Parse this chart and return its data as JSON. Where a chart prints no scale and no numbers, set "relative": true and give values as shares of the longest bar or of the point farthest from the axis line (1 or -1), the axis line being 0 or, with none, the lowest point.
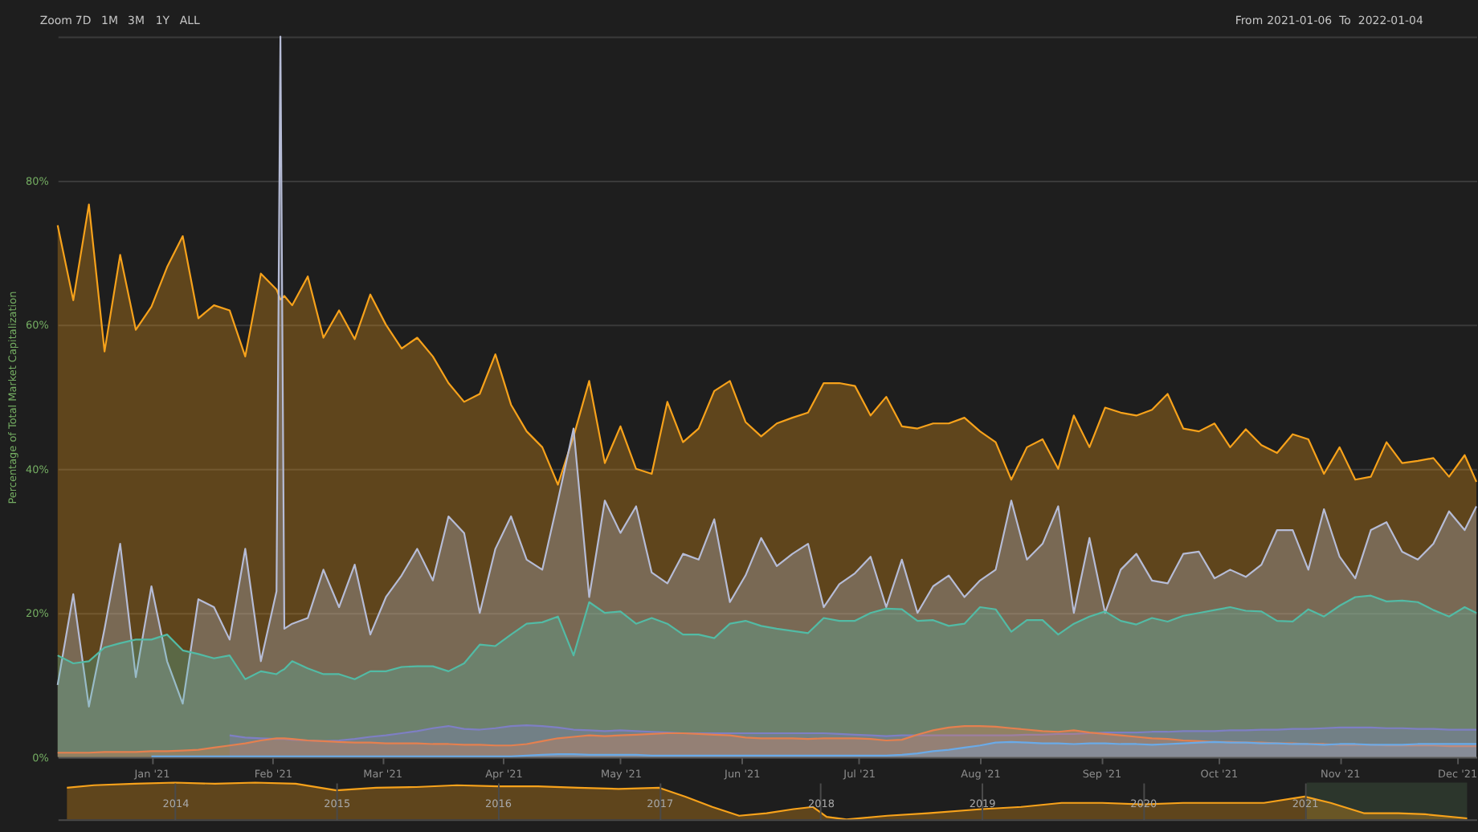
{
  "chart_data": [
    {
      "type": "area",
      "ylabel": "Percentage of Total Market Capitalization",
      "annotations": [
        "Zoom",
        "7D",
        "1M",
        "3M",
        "1Y",
        "ALL",
        "From",
        "2021-01-06",
        "To",
        "2022-01-04"
      ],
      "x": [
        "2020-12-08",
        "2020-12-12",
        "2020-12-16",
        "2020-12-20",
        "2020-12-24",
        "2020-12-28",
        "2021-01-01",
        "2021-01-05",
        "2021-01-09",
        "2021-01-13",
        "2021-01-17",
        "2021-01-21",
        "2021-01-25",
        "2021-01-29",
        "2021-02-02",
        "2021-02-03",
        "2021-02-04",
        "2021-02-06",
        "2021-02-10",
        "2021-02-14",
        "2021-02-18",
        "2021-02-22",
        "2021-02-26",
        "2021-03-02",
        "2021-03-06",
        "2021-03-10",
        "2021-03-14",
        "2021-03-18",
        "2021-03-22",
        "2021-03-26",
        "2021-03-30",
        "2021-04-03",
        "2021-04-07",
        "2021-04-11",
        "2021-04-15",
        "2021-04-19",
        "2021-04-23",
        "2021-04-27",
        "2021-05-01",
        "2021-05-05",
        "2021-05-09",
        "2021-05-13",
        "2021-05-17",
        "2021-05-21",
        "2021-05-25",
        "2021-05-29",
        "2021-06-02",
        "2021-06-06",
        "2021-06-10",
        "2021-06-14",
        "2021-06-18",
        "2021-06-22",
        "2021-06-26",
        "2021-06-30",
        "2021-07-04",
        "2021-07-08",
        "2021-07-12",
        "2021-07-16",
        "2021-07-20",
        "2021-07-24",
        "2021-07-28",
        "2021-08-01",
        "2021-08-05",
        "2021-08-09",
        "2021-08-13",
        "2021-08-17",
        "2021-08-21",
        "2021-08-25",
        "2021-08-29",
        "2021-09-02",
        "2021-09-06",
        "2021-09-10",
        "2021-09-14",
        "2021-09-18",
        "2021-09-22",
        "2021-09-26",
        "2021-09-30",
        "2021-10-04",
        "2021-10-08",
        "2021-10-12",
        "2021-10-16",
        "2021-10-20",
        "2021-10-24",
        "2021-10-28",
        "2021-11-01",
        "2021-11-05",
        "2021-11-09",
        "2021-11-13",
        "2021-11-17",
        "2021-11-21",
        "2021-11-25",
        "2021-11-29",
        "2021-12-03",
        "2021-12-06"
      ],
      "xlim": [
        "2020-12-08",
        "2021-12-06"
      ],
      "xticks": [
        {
          "value": "2021-01-01",
          "label": "Jan '21"
        },
        {
          "value": "2021-02-01",
          "label": "Feb '21"
        },
        {
          "value": "2021-03-01",
          "label": "Mar '21"
        },
        {
          "value": "2021-04-01",
          "label": "Apr '21"
        },
        {
          "value": "2021-05-01",
          "label": "May '21"
        },
        {
          "value": "2021-06-01",
          "label": "Jun '21"
        },
        {
          "value": "2021-07-01",
          "label": "Jul '21"
        },
        {
          "value": "2021-08-01",
          "label": "Aug '21"
        },
        {
          "value": "2021-09-01",
          "label": "Sep '21"
        },
        {
          "value": "2021-10-01",
          "label": "Oct '21"
        },
        {
          "value": "2021-11-01",
          "label": "Nov '21"
        },
        {
          "value": "2021-12-01",
          "label": "Dec '21"
        }
      ],
      "ylim": [
        0,
        100
      ],
      "yticks": [
        {
          "value": 0,
          "label": "0%"
        },
        {
          "value": 20,
          "label": "20%"
        },
        {
          "value": 40,
          "label": "40%"
        },
        {
          "value": 60,
          "label": "60%"
        },
        {
          "value": 80,
          "label": "80%"
        },
        {
          "value": 100,
          "label": null
        }
      ],
      "grid": "y",
      "series": [
        {
          "color": "#f7a21b",
          "values": [
            73.8,
            63.4,
            76.7,
            56.3,
            69.7,
            59.3,
            62.5,
            68.0,
            72.3,
            60.9,
            62.7,
            62.0,
            55.6,
            67.1,
            64.9,
            63.5,
            64.0,
            62.7,
            66.7,
            58.2,
            62.0,
            58.0,
            64.2,
            60.0,
            56.7,
            58.2,
            55.6,
            51.9,
            49.3,
            50.4,
            55.9,
            48.9,
            45.2,
            43.0,
            37.8,
            44.5,
            52.2,
            40.8,
            45.9,
            40.0,
            39.3,
            49.3,
            43.7,
            45.6,
            50.8,
            52.2,
            46.5,
            44.5,
            46.3,
            47.1,
            47.8,
            51.9,
            51.9,
            51.5,
            47.4,
            50.0,
            45.9,
            45.6,
            46.3,
            46.3,
            47.1,
            45.2,
            43.7,
            38.5,
            43.0,
            44.1,
            40.0,
            47.4,
            43.0,
            48.5,
            47.8,
            47.4,
            48.2,
            50.4,
            45.6,
            45.2,
            46.3,
            43.0,
            45.5,
            43.3,
            42.2,
            44.8,
            44.1,
            39.3,
            43.0,
            38.5,
            38.9,
            43.7,
            40.8,
            41.1,
            41.5,
            38.9,
            41.9,
            38.2
          ]
        },
        {
          "color": "#b6bcd6",
          "values": [
            10.0,
            22.6,
            7.0,
            17.8,
            29.6,
            11.1,
            23.7,
            13.3,
            7.4,
            21.9,
            20.8,
            16.3,
            28.9,
            13.3,
            23.0,
            100,
            17.8,
            18.5,
            19.3,
            26.0,
            20.8,
            26.7,
            17.0,
            22.2,
            25.2,
            28.9,
            24.5,
            33.4,
            31.1,
            20.0,
            28.9,
            33.4,
            27.4,
            26.0,
            35.6,
            45.6,
            22.2,
            35.6,
            31.1,
            34.8,
            25.6,
            24.1,
            28.2,
            27.4,
            33.0,
            21.5,
            25.2,
            30.4,
            26.5,
            28.2,
            29.6,
            20.8,
            24.0,
            25.5,
            27.8,
            20.8,
            27.4,
            20.0,
            23.7,
            25.2,
            22.2,
            24.5,
            26.0,
            35.6,
            27.4,
            29.6,
            34.8,
            20.0,
            30.4,
            20.0,
            26.0,
            28.2,
            24.5,
            24.1,
            28.2,
            28.5,
            24.8,
            26.0,
            25.0,
            26.7,
            31.5,
            31.5,
            26.0,
            34.4,
            27.8,
            24.8,
            31.5,
            32.6,
            28.5,
            27.4,
            29.6,
            34.1,
            31.5,
            34.8
          ]
        },
        {
          "color": "#52bba5",
          "values": [
            14.1,
            13.0,
            13.3,
            15.2,
            15.8,
            16.3,
            16.3,
            17.0,
            14.8,
            14.3,
            13.7,
            14.1,
            10.8,
            11.9,
            11.5,
            11.9,
            12.2,
            13.3,
            12.3,
            11.5,
            11.5,
            10.8,
            11.9,
            11.9,
            12.5,
            12.6,
            12.6,
            11.9,
            13.0,
            15.6,
            15.4,
            17.0,
            18.5,
            18.7,
            19.5,
            14.1,
            21.5,
            20.0,
            20.2,
            18.5,
            19.3,
            18.5,
            17.0,
            17.0,
            16.5,
            18.5,
            18.9,
            18.2,
            17.8,
            17.5,
            17.2,
            19.3,
            18.9,
            18.9,
            20.0,
            20.6,
            20.5,
            18.9,
            19.0,
            18.2,
            18.5,
            20.8,
            20.5,
            17.4,
            19.0,
            19.0,
            17.0,
            18.5,
            19.5,
            20.2,
            18.9,
            18.4,
            19.3,
            18.8,
            19.6,
            20.0,
            20.4,
            20.8,
            20.3,
            20.2,
            18.9,
            18.8,
            20.5,
            19.5,
            21.0,
            22.2,
            22.4,
            21.6,
            21.7,
            21.5,
            20.4,
            19.5,
            20.8,
            20.0
          ]
        },
        {
          "color": "#7e7fc4",
          "values": [
            null,
            null,
            null,
            null,
            null,
            null,
            null,
            null,
            null,
            null,
            null,
            3.0,
            2.7,
            2.6,
            2.5,
            2.5,
            2.5,
            2.4,
            2.3,
            2.2,
            2.3,
            2.5,
            2.8,
            3.0,
            3.3,
            3.6,
            4.0,
            4.3,
            3.9,
            3.8,
            4.0,
            4.3,
            4.4,
            4.3,
            4.1,
            3.8,
            3.7,
            3.6,
            3.7,
            3.6,
            3.5,
            3.4,
            3.3,
            3.3,
            3.3,
            3.3,
            3.3,
            3.3,
            3.3,
            3.3,
            3.3,
            3.3,
            3.2,
            3.1,
            3.0,
            2.9,
            3.0,
            3.0,
            3.0,
            3.0,
            3.0,
            3.0,
            3.0,
            3.0,
            3.1,
            3.1,
            3.2,
            3.2,
            3.3,
            3.4,
            3.4,
            3.4,
            3.5,
            3.5,
            3.6,
            3.6,
            3.6,
            3.7,
            3.7,
            3.8,
            3.8,
            3.9,
            3.9,
            4.0,
            4.1,
            4.1,
            4.1,
            4.0,
            4.0,
            3.9,
            3.9,
            3.8,
            3.8,
            3.8
          ]
        },
        {
          "color": "#e5804f",
          "values": [
            0.6,
            0.6,
            0.6,
            0.7,
            0.7,
            0.7,
            0.8,
            0.8,
            0.9,
            1.0,
            1.3,
            1.6,
            1.9,
            2.3,
            2.6,
            2.6,
            2.6,
            2.5,
            2.3,
            2.2,
            2.1,
            2.0,
            2.0,
            1.9,
            1.9,
            1.9,
            1.8,
            1.8,
            1.7,
            1.7,
            1.6,
            1.6,
            1.8,
            2.2,
            2.6,
            2.8,
            3.0,
            2.9,
            3.0,
            3.1,
            3.2,
            3.3,
            3.3,
            3.2,
            3.1,
            3.0,
            2.7,
            2.6,
            2.6,
            2.6,
            2.5,
            2.6,
            2.6,
            2.6,
            2.5,
            2.3,
            2.4,
            3.1,
            3.7,
            4.1,
            4.3,
            4.3,
            4.2,
            4.0,
            3.8,
            3.6,
            3.5,
            3.7,
            3.4,
            3.2,
            3.0,
            2.8,
            2.6,
            2.5,
            2.3,
            2.2,
            2.1,
            2.1,
            2.0,
            2.0,
            1.9,
            1.9,
            1.8,
            1.8,
            1.7,
            1.7,
            1.7,
            1.6,
            1.6,
            1.6,
            1.6,
            1.5,
            1.5,
            1.5
          ]
        },
        {
          "color": "#6aaae8",
          "values": [
            null,
            null,
            null,
            null,
            null,
            null,
            0.1,
            0.1,
            0.1,
            0.1,
            0.1,
            0.1,
            0.1,
            0.1,
            0.1,
            0.1,
            0.1,
            0.1,
            0.1,
            0.1,
            0.1,
            0.1,
            0.1,
            0.1,
            0.1,
            0.1,
            0.1,
            0.1,
            0.1,
            0.1,
            0.1,
            0.1,
            0.2,
            0.3,
            0.4,
            0.4,
            0.3,
            0.3,
            0.3,
            0.3,
            0.2,
            0.2,
            0.2,
            0.2,
            0.2,
            0.2,
            0.2,
            0.2,
            0.2,
            0.2,
            0.2,
            0.2,
            0.2,
            0.2,
            0.2,
            0.2,
            0.3,
            0.5,
            0.8,
            1.0,
            1.3,
            1.6,
            2.0,
            2.1,
            2.0,
            1.9,
            1.9,
            1.8,
            1.9,
            1.9,
            1.8,
            1.8,
            1.7,
            1.8,
            1.9,
            2.0,
            2.1,
            2.0,
            2.0,
            1.9,
            1.9,
            1.8,
            1.8,
            1.7,
            1.8,
            1.8,
            1.7,
            1.7,
            1.7,
            1.8,
            1.8,
            1.8,
            1.8,
            1.8
          ]
        }
      ]
    },
    {
      "type": "area",
      "relative": true,
      "x": [
        "2013-05-01",
        "2013-07-01",
        "2013-10-01",
        "2014-01-01",
        "2014-04-01",
        "2014-07-01",
        "2014-10-01",
        "2015-01-01",
        "2015-04-01",
        "2015-07-01",
        "2015-10-01",
        "2016-01-01",
        "2016-04-01",
        "2016-07-01",
        "2016-10-01",
        "2017-01-01",
        "2017-03-01",
        "2017-05-01",
        "2017-07-01",
        "2017-09-01",
        "2017-11-01",
        "2017-12-15",
        "2018-01-15",
        "2018-03-01",
        "2018-06-01",
        "2018-09-01",
        "2019-01-01",
        "2019-04-01",
        "2019-07-01",
        "2019-10-01",
        "2020-01-01",
        "2020-04-01",
        "2020-07-01",
        "2020-10-01",
        "2021-01-01",
        "2021-03-01",
        "2021-05-15",
        "2021-08-01",
        "2021-10-01",
        "2022-01-04"
      ],
      "xlim": [
        "2013-04-10",
        "2022-01-25"
      ],
      "xticks": [
        "2014",
        "2015",
        "2016",
        "2017",
        "2018",
        "2019",
        "2020",
        "2021"
      ],
      "grid": "x",
      "bands": [
        {
          "axis": "x",
          "from": "2021-01-06",
          "to": "2022-01-04",
          "color": "#2c362c"
        }
      ],
      "series": [
        {
          "color": "#f7a21b",
          "values": [
            0.86,
            0.93,
            0.97,
            1.0,
            0.97,
            1.0,
            0.97,
            0.79,
            0.86,
            0.88,
            0.93,
            0.9,
            0.9,
            0.86,
            0.83,
            0.86,
            0.62,
            0.34,
            0.1,
            0.17,
            0.28,
            0.34,
            0.07,
            0.0,
            0.1,
            0.17,
            0.28,
            0.34,
            0.45,
            0.45,
            0.41,
            0.45,
            0.45,
            0.45,
            0.62,
            0.45,
            0.17,
            0.17,
            0.14,
            0.03
          ]
        }
      ]
    }
  ]
}
